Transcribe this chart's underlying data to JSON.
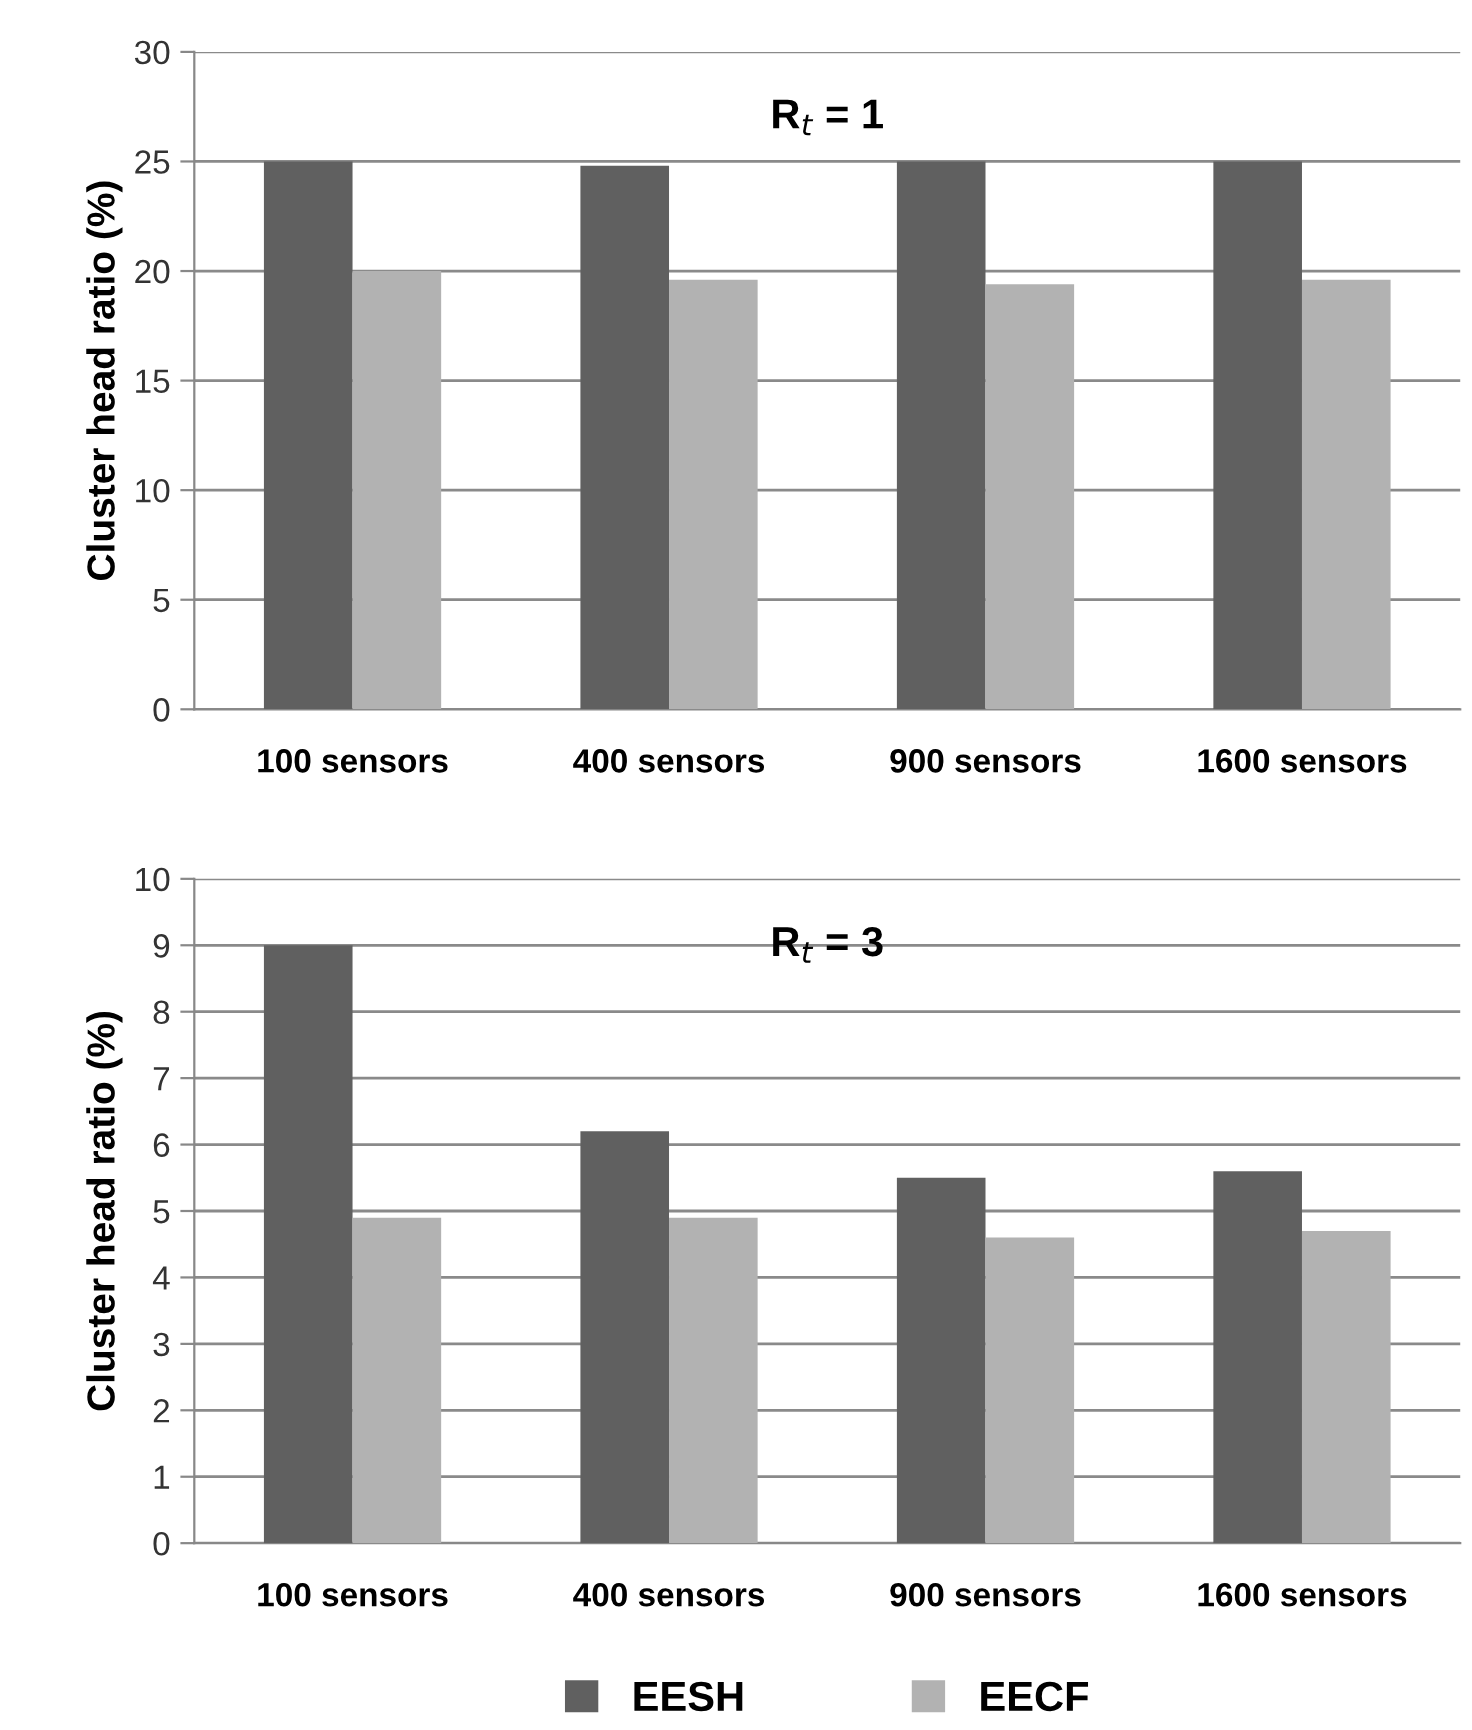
{
  "chart_data": [
    {
      "type": "bar",
      "title": "R$_{t}$ = 1",
      "ylabel": "Cluster head ratio (%)",
      "categories": [
        "100 sensors",
        "400 sensors",
        "900 sensors",
        "1600 sensors"
      ],
      "series": [
        {
          "color": "#606060",
          "values": [
            25,
            24.8,
            25,
            25
          ]
        },
        {
          "color": "#b2b2b2",
          "values": [
            20,
            19.6,
            19.4,
            19.6
          ]
        }
      ],
      "ylim": [
        0,
        30
      ],
      "yticks": [
        0,
        5,
        10,
        15,
        20,
        25,
        30
      ],
      "grid": "y",
      "legend": false
    },
    {
      "type": "bar",
      "title": "R$_{t}$ = 3",
      "ylabel": "Cluster head ratio (%)",
      "categories": [
        "100 sensors",
        "400 sensors",
        "900 sensors",
        "1600 sensors"
      ],
      "series": [
        {
          "name": "EESH",
          "color": "#606060",
          "values": [
            9.0,
            6.2,
            5.5,
            5.6
          ]
        },
        {
          "name": "EECF",
          "color": "#b2b2b2",
          "values": [
            4.9,
            4.9,
            4.6,
            4.7
          ]
        }
      ],
      "ylim": [
        0,
        10
      ],
      "yticks": [
        0,
        1,
        2,
        3,
        4,
        5,
        6,
        7,
        8,
        9,
        10
      ],
      "grid": "y",
      "legend": "bottom"
    }
  ]
}
